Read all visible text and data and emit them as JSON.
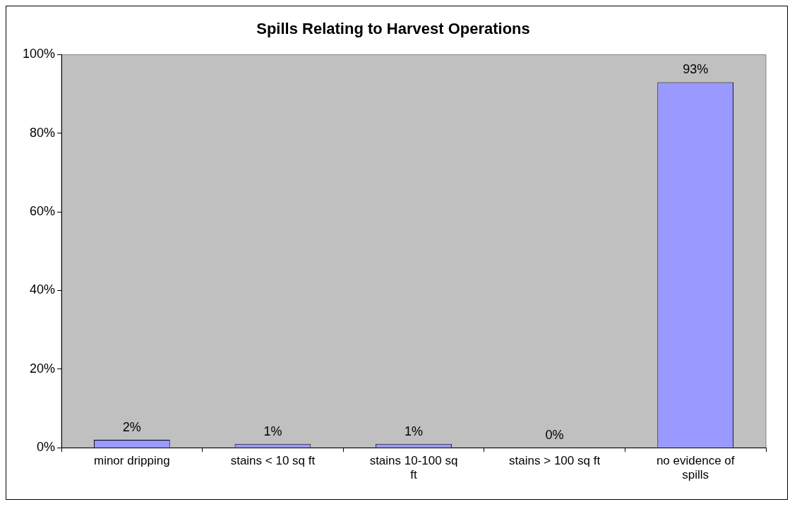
{
  "chart_data": {
    "type": "bar",
    "title": "Spills Relating to Harvest Operations",
    "categories": [
      "minor dripping",
      "stains < 10 sq ft",
      "stains 10-100 sq ft",
      "stains > 100 sq ft",
      "no evidence of spills"
    ],
    "values": [
      2,
      1,
      1,
      0,
      93
    ],
    "value_labels": [
      "2%",
      "1%",
      "1%",
      "0%",
      "93%"
    ],
    "color": "#9999ff",
    "ylim": [
      0,
      100
    ],
    "yticks": [
      {
        "value": 0,
        "label": "0%"
      },
      {
        "value": 20,
        "label": "20%"
      },
      {
        "value": 40,
        "label": "40%"
      },
      {
        "value": 60,
        "label": "60%"
      },
      {
        "value": 80,
        "label": "80%"
      },
      {
        "value": 100,
        "label": "100%"
      }
    ],
    "grid": false,
    "legend": false
  }
}
